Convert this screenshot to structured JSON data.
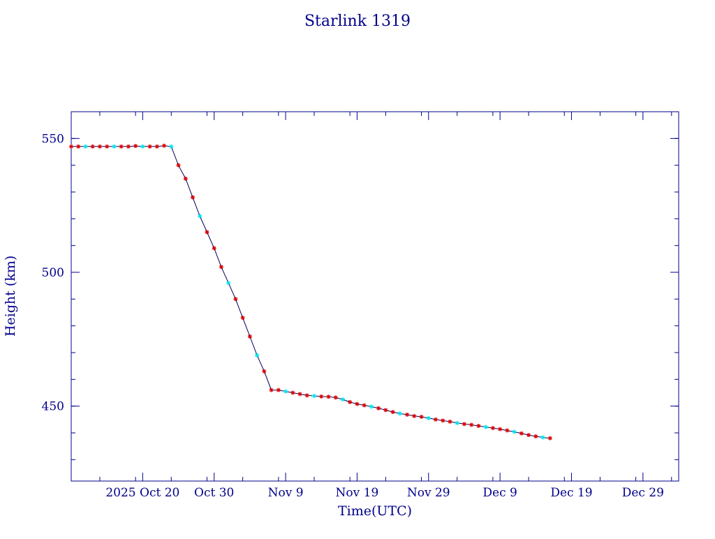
{
  "chart_data": {
    "type": "line",
    "title": "Starlink 1319",
    "xlabel": "Time(UTC)",
    "ylabel": "Height (km)",
    "x_tick_labels": [
      "2025 Oct 20",
      "Oct 30",
      "Nov  9",
      "Nov 19",
      "Nov 29",
      "Dec  9",
      "Dec 19",
      "Dec 29"
    ],
    "x_tick_dates": [
      "2025-10-20",
      "2025-10-30",
      "2025-11-09",
      "2025-11-19",
      "2025-11-29",
      "2025-12-09",
      "2025-12-19",
      "2025-12-29"
    ],
    "y_ticks": [
      450,
      500,
      550
    ],
    "xlim": [
      "2025-10-10",
      "2026-01-03"
    ],
    "ylim": [
      422,
      560
    ],
    "grid": false,
    "colors": {
      "frame": "#00008b",
      "text": "#00008b",
      "line": "#000060",
      "marker_primary": "#dd0000",
      "marker_secondary": "#00e5ee"
    },
    "series": [
      {
        "x": [
          "2025-10-10",
          "2025-10-11",
          "2025-10-12",
          "2025-10-13",
          "2025-10-14",
          "2025-10-15",
          "2025-10-16",
          "2025-10-17",
          "2025-10-18",
          "2025-10-19",
          "2025-10-20",
          "2025-10-21",
          "2025-10-22",
          "2025-10-23",
          "2025-10-24",
          "2025-10-25",
          "2025-10-26",
          "2025-10-27",
          "2025-10-28",
          "2025-10-29",
          "2025-10-30",
          "2025-10-31",
          "2025-11-01",
          "2025-11-02",
          "2025-11-03",
          "2025-11-04",
          "2025-11-05",
          "2025-11-06",
          "2025-11-07",
          "2025-11-08",
          "2025-11-09",
          "2025-11-10",
          "2025-11-11",
          "2025-11-12",
          "2025-11-13",
          "2025-11-14",
          "2025-11-15",
          "2025-11-16",
          "2025-11-17",
          "2025-11-18",
          "2025-11-19",
          "2025-11-20",
          "2025-11-21",
          "2025-11-22",
          "2025-11-23",
          "2025-11-24",
          "2025-11-25",
          "2025-11-26",
          "2025-11-27",
          "2025-11-28",
          "2025-11-29",
          "2025-11-30",
          "2025-12-01",
          "2025-12-02",
          "2025-12-03",
          "2025-12-04",
          "2025-12-05",
          "2025-12-06",
          "2025-12-07",
          "2025-12-08",
          "2025-12-09",
          "2025-12-10",
          "2025-12-11",
          "2025-12-12",
          "2025-12-13",
          "2025-12-14",
          "2025-12-15",
          "2025-12-16"
        ],
        "y": [
          547,
          547,
          547,
          547,
          547,
          547,
          547,
          547,
          547,
          547.2,
          547,
          547,
          547,
          547.3,
          547,
          540,
          535,
          528,
          521,
          515,
          509,
          502,
          496,
          490,
          483,
          476,
          469,
          463,
          456,
          456,
          455.5,
          455,
          454.5,
          454,
          453.8,
          453.6,
          453.5,
          453.2,
          452.5,
          451.5,
          450.8,
          450.3,
          449.8,
          449.2,
          448.5,
          447.8,
          447.2,
          446.8,
          446.3,
          446,
          445.5,
          445,
          444.6,
          444.2,
          443.7,
          443.3,
          443,
          442.6,
          442.2,
          441.8,
          441.4,
          440.9,
          440.4,
          439.8,
          439.2,
          438.7,
          438.3,
          438
        ]
      }
    ]
  }
}
